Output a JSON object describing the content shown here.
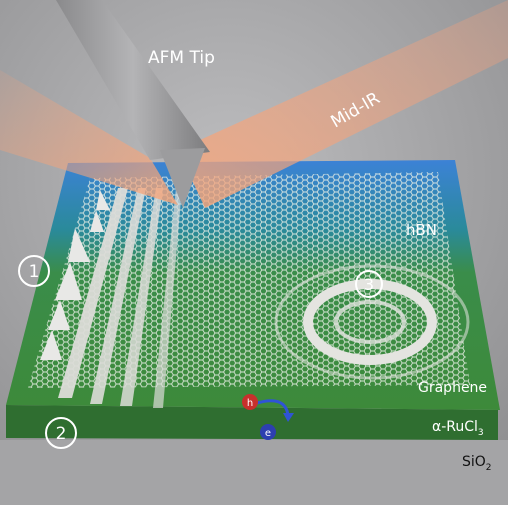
{
  "labels": {
    "afm_tip": "AFM Tip",
    "mid_ir": "Mid-IR",
    "hbn": "hBN",
    "graphene": "Graphene",
    "rucl3_prefix": "α-RuCl",
    "rucl3_sub": "3",
    "sio2_prefix": "SiO",
    "sio2_sub": "2"
  },
  "markers": {
    "m1": "1",
    "m2": "2",
    "m3": "3"
  },
  "carriers": {
    "hole": "h",
    "electron": "e"
  },
  "colors": {
    "hbn": "#2f74c8",
    "graphene_substrate": "#3a8a3c",
    "sio2": "#b7b7b9",
    "ir_beam": "#f4a27a",
    "hole": "#c8302c",
    "electron": "#2d3fb0"
  }
}
